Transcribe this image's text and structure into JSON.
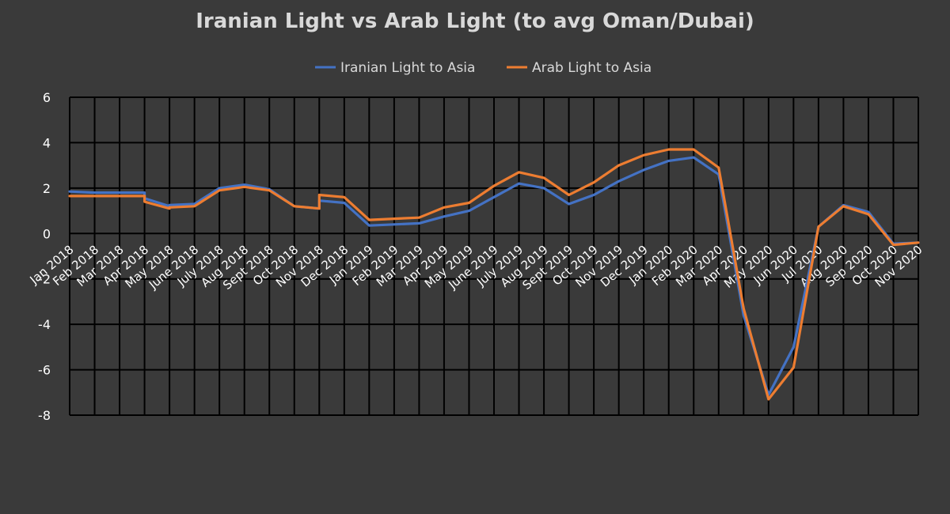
{
  "chart_data": {
    "type": "line",
    "title": "Iranian Light vs Arab Light (to avg Oman/Dubai)",
    "xlabel": "",
    "ylabel": "",
    "ylim": [
      -8,
      6
    ],
    "y_ticks": [
      6,
      4,
      2,
      0,
      -2,
      -4,
      -6,
      -8
    ],
    "grid": "vertical and horizontal",
    "legend_position": "top",
    "colors": {
      "background": "#3a3a3a",
      "grid": "#000000",
      "text": "#d9d9d9"
    },
    "categories": [
      "Jan 2018",
      "Feb 2018",
      "Mar 2018",
      "Apr 2018",
      "May 2018",
      "June 2018",
      "July 2018",
      "Aug 2018",
      "Sept 2018",
      "Oct 2018",
      "Nov 2018",
      "Dec 2018",
      "Jan 2019",
      "Feb 2019",
      "Mar 2019",
      "Apr 2019",
      "May 2019",
      "June 2019",
      "July 2019",
      "Aug 2019",
      "Sept 2019",
      "Oct 2019",
      "Nov 2019",
      "Dec 2019",
      "Jan 2020",
      "Feb 2020",
      "Mar 2020",
      "Apr 2020",
      "May 2020",
      "Jun 2020",
      "Jul 2020",
      "Aug 2020",
      "Sep 2020",
      "Oct 2020",
      "Nov 2020"
    ],
    "series": [
      {
        "name": "Iranian Light to Asia",
        "color": "#4472c4",
        "points": [
          {
            "x": "Jan 2018",
            "y": 1.85
          },
          {
            "x": "Feb 2018",
            "y": 1.8
          },
          {
            "x": "Mar 2018",
            "y": 1.8
          },
          {
            "x": "Apr 2018",
            "y": 1.8
          },
          {
            "x": "Apr 2018",
            "y": 1.55
          },
          {
            "x": "May 2018",
            "y": 1.2
          },
          {
            "x": "May 2018",
            "y": 1.25
          },
          {
            "x": "June 2018",
            "y": 1.3
          },
          {
            "x": "July 2018",
            "y": 2.0
          },
          {
            "x": "Aug 2018",
            "y": 2.15
          },
          {
            "x": "Sept 2018",
            "y": 1.95
          },
          {
            "x": "Oct 2018",
            "y": 1.2
          },
          {
            "x": "Nov 2018",
            "y": 1.1
          },
          {
            "x": "Nov 2018",
            "y": 1.45
          },
          {
            "x": "Dec 2018",
            "y": 1.35
          },
          {
            "x": "Jan 2019",
            "y": 0.35
          },
          {
            "x": "Feb 2019",
            "y": 0.4
          },
          {
            "x": "Mar 2019",
            "y": 0.45
          },
          {
            "x": "Apr 2019",
            "y": 0.75
          },
          {
            "x": "May 2019",
            "y": 1.0
          },
          {
            "x": "June 2019",
            "y": 1.6
          },
          {
            "x": "July 2019",
            "y": 2.2
          },
          {
            "x": "Aug 2019",
            "y": 2.0
          },
          {
            "x": "Sept 2019",
            "y": 1.3
          },
          {
            "x": "Oct 2019",
            "y": 1.7
          },
          {
            "x": "Nov 2019",
            "y": 2.3
          },
          {
            "x": "Dec 2019",
            "y": 2.8
          },
          {
            "x": "Jan 2020",
            "y": 3.2
          },
          {
            "x": "Feb 2020",
            "y": 3.35
          },
          {
            "x": "Mar 2020",
            "y": 2.6
          },
          {
            "x": "Apr 2020",
            "y": -3.6
          },
          {
            "x": "May 2020",
            "y": -7.1
          },
          {
            "x": "Jun 2020",
            "y": -5.0
          },
          {
            "x": "Jul 2020",
            "y": 0.3
          },
          {
            "x": "Aug 2020",
            "y": 1.25
          },
          {
            "x": "Sep 2020",
            "y": 0.95
          },
          {
            "x": "Oct 2020",
            "y": -0.45
          },
          {
            "x": "Nov 2020",
            "y": -0.4
          }
        ]
      },
      {
        "name": "Arab Light to Asia",
        "color": "#ed7d31",
        "points": [
          {
            "x": "Jan 2018",
            "y": 1.65
          },
          {
            "x": "Feb 2018",
            "y": 1.65
          },
          {
            "x": "Mar 2018",
            "y": 1.65
          },
          {
            "x": "Apr 2018",
            "y": 1.65
          },
          {
            "x": "Apr 2018",
            "y": 1.4
          },
          {
            "x": "May 2018",
            "y": 1.1
          },
          {
            "x": "May 2018",
            "y": 1.15
          },
          {
            "x": "June 2018",
            "y": 1.2
          },
          {
            "x": "July 2018",
            "y": 1.9
          },
          {
            "x": "Aug 2018",
            "y": 2.05
          },
          {
            "x": "Sept 2018",
            "y": 1.9
          },
          {
            "x": "Oct 2018",
            "y": 1.2
          },
          {
            "x": "Nov 2018",
            "y": 1.1
          },
          {
            "x": "Nov 2018",
            "y": 1.7
          },
          {
            "x": "Dec 2018",
            "y": 1.6
          },
          {
            "x": "Jan 2019",
            "y": 0.6
          },
          {
            "x": "Feb 2019",
            "y": 0.65
          },
          {
            "x": "Mar 2019",
            "y": 0.7
          },
          {
            "x": "Apr 2019",
            "y": 1.15
          },
          {
            "x": "May 2019",
            "y": 1.35
          },
          {
            "x": "June 2019",
            "y": 2.1
          },
          {
            "x": "July 2019",
            "y": 2.7
          },
          {
            "x": "Aug 2019",
            "y": 2.45
          },
          {
            "x": "Sept 2019",
            "y": 1.7
          },
          {
            "x": "Oct 2019",
            "y": 2.25
          },
          {
            "x": "Nov 2019",
            "y": 3.0
          },
          {
            "x": "Dec 2019",
            "y": 3.45
          },
          {
            "x": "Jan 2020",
            "y": 3.7
          },
          {
            "x": "Feb 2020",
            "y": 3.7
          },
          {
            "x": "Mar 2020",
            "y": 2.9
          },
          {
            "x": "Apr 2020",
            "y": -3.3
          },
          {
            "x": "May 2020",
            "y": -7.3
          },
          {
            "x": "Jun 2020",
            "y": -5.9
          },
          {
            "x": "Jul 2020",
            "y": 0.3
          },
          {
            "x": "Aug 2020",
            "y": 1.2
          },
          {
            "x": "Sep 2020",
            "y": 0.85
          },
          {
            "x": "Oct 2020",
            "y": -0.5
          },
          {
            "x": "Nov 2020",
            "y": -0.4
          }
        ]
      }
    ]
  }
}
